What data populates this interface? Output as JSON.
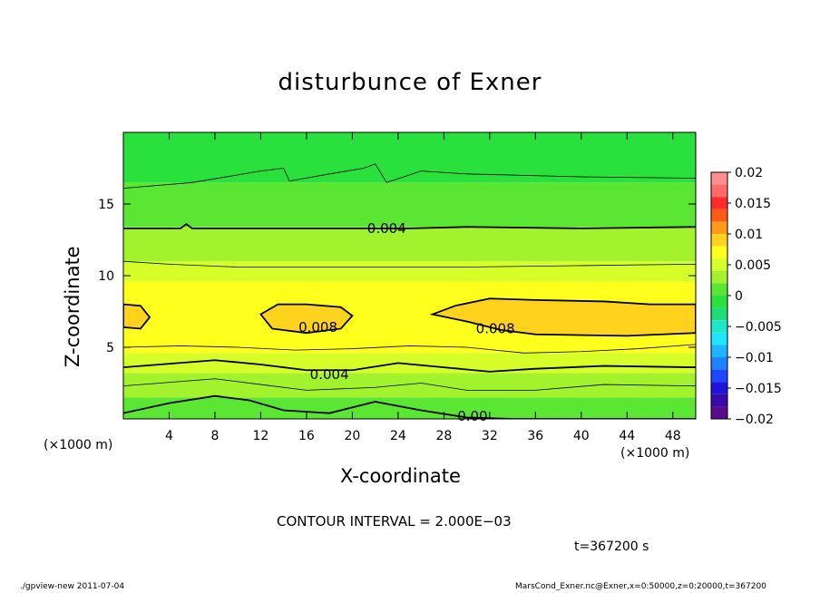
{
  "chart_data": {
    "type": "heatmap",
    "title": "disturbunce of Exner",
    "xlabel": "X-coordinate",
    "ylabel": "Z-coordinate",
    "x_unit": "(×1000 m)",
    "y_unit": "(×1000 m)",
    "xlim": [
      0,
      50
    ],
    "ylim": [
      0,
      20
    ],
    "x_ticks": [
      4,
      8,
      12,
      16,
      20,
      24,
      28,
      32,
      36,
      40,
      44,
      48
    ],
    "y_ticks": [
      5,
      10,
      15
    ],
    "colorbar": {
      "ticks": [
        0.02,
        0.015,
        0.01,
        0.005,
        0,
        -0.005,
        -0.01,
        -0.015,
        -0.02
      ],
      "tick_labels": [
        "0.02",
        "0.015",
        "0.01",
        "0.005",
        "0",
        "−0.005",
        "−0.01",
        "−0.015",
        "−0.02"
      ],
      "levels": [
        {
          "min": 0.018,
          "max": 0.02,
          "color": "#ff8f8f"
        },
        {
          "min": 0.016,
          "max": 0.018,
          "color": "#ff6a6a"
        },
        {
          "min": 0.014,
          "max": 0.016,
          "color": "#ff2a2a"
        },
        {
          "min": 0.012,
          "max": 0.014,
          "color": "#ff5a14"
        },
        {
          "min": 0.01,
          "max": 0.012,
          "color": "#ff9a1a"
        },
        {
          "min": 0.008,
          "max": 0.01,
          "color": "#ffd21e"
        },
        {
          "min": 0.006,
          "max": 0.008,
          "color": "#ffff1e"
        },
        {
          "min": 0.004,
          "max": 0.006,
          "color": "#d6ff2a"
        },
        {
          "min": 0.002,
          "max": 0.004,
          "color": "#a2f22e"
        },
        {
          "min": 0.0,
          "max": 0.002,
          "color": "#5ae632"
        },
        {
          "min": -0.002,
          "max": 0.0,
          "color": "#2ae03c"
        },
        {
          "min": -0.004,
          "max": -0.002,
          "color": "#1edc78"
        },
        {
          "min": -0.006,
          "max": -0.004,
          "color": "#1ee6c8"
        },
        {
          "min": -0.008,
          "max": -0.006,
          "color": "#1ee6ff"
        },
        {
          "min": -0.01,
          "max": -0.008,
          "color": "#1eb4ff"
        },
        {
          "min": -0.012,
          "max": -0.01,
          "color": "#1e82ff"
        },
        {
          "min": -0.014,
          "max": -0.012,
          "color": "#1e46ff"
        },
        {
          "min": -0.016,
          "max": -0.014,
          "color": "#1e14dc"
        },
        {
          "min": -0.018,
          "max": -0.016,
          "color": "#3c0aaa"
        },
        {
          "min": -0.02,
          "max": -0.018,
          "color": "#5a0a8c"
        }
      ]
    },
    "contour_labels": [
      {
        "text": "0.004",
        "x": 23,
        "z": 13.3
      },
      {
        "text": "0.008",
        "x": 17,
        "z": 6.4
      },
      {
        "text": "0.008",
        "x": 32.5,
        "z": 6.3
      },
      {
        "text": "0.004",
        "x": 18,
        "z": 3.1
      },
      {
        "text": "0.00",
        "x": 30.5,
        "z": 0.2
      }
    ],
    "field_bands": [
      {
        "z": 0,
        "color": "#5ae632"
      },
      {
        "z": 1.5,
        "color": "#a2f22e"
      },
      {
        "z": 3.2,
        "color": "#d6ff2a"
      },
      {
        "z": 4.6,
        "color": "#ffff1e"
      },
      {
        "z": 9.6,
        "color": "#d6ff2a"
      },
      {
        "z": 11.0,
        "color": "#a2f22e"
      },
      {
        "z": 13.4,
        "color": "#5ae632"
      },
      {
        "z": 16.5,
        "color": "#2ae03c"
      }
    ],
    "interval_text": "CONTOUR INTERVAL = 2.000E−03",
    "time_text": "t=367200 s"
  },
  "footer": {
    "left": "./gpview-new   2011-07-04",
    "right": "MarsCond_Exner.nc@Exner,x=0:50000,z=0:20000,t=367200"
  }
}
